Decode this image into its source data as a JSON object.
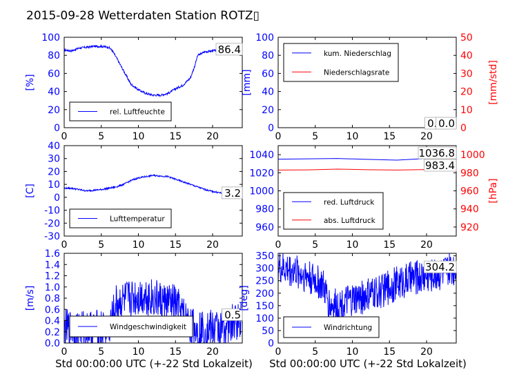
{
  "title": "2015-09-28 Wetterdaten Station ROTZ▯",
  "colors": {
    "primary": "#0000ff",
    "secondary": "#ff0000",
    "axis": "#000000",
    "background": "#ffffff"
  },
  "xlabel": "Std 00:00:00 UTC (+-22 Std Lokalzeit)",
  "chart_data": [
    {
      "id": "humidity",
      "type": "line",
      "xlim": [
        0,
        24
      ],
      "ylim": [
        0,
        100
      ],
      "xticks": [
        0,
        5,
        10,
        15,
        20
      ],
      "yticks": [
        0,
        20,
        40,
        60,
        80,
        100
      ],
      "ylabel": "[%]",
      "legend_placement": "lower-center",
      "last_value": "86.4",
      "series": [
        {
          "name": "rel. Luftfeuchte",
          "color": "#0000ff",
          "noise": 1.2,
          "x": [
            0,
            1,
            2,
            3,
            4,
            5,
            6,
            6.5,
            7,
            8,
            9,
            10,
            11,
            12,
            13,
            14,
            15,
            16,
            17,
            17.5,
            18,
            19,
            20,
            21,
            22,
            23,
            24
          ],
          "y": [
            86,
            85,
            88,
            89,
            90,
            90,
            89,
            85,
            78,
            63,
            48,
            42,
            38,
            36,
            36,
            38,
            43,
            47,
            55,
            66,
            80,
            84,
            85,
            86,
            86,
            86,
            86.4
          ]
        }
      ]
    },
    {
      "id": "precipitation",
      "type": "line",
      "xlim": [
        0,
        24
      ],
      "ylim": [
        0,
        100
      ],
      "y2lim": [
        0,
        50
      ],
      "xticks": [
        0,
        5,
        10,
        15,
        20
      ],
      "yticks": [
        0,
        20,
        40,
        60,
        80,
        100
      ],
      "y2ticks": [
        0,
        10,
        20,
        30,
        40,
        50
      ],
      "ylabel": "[mm]",
      "y2label": "[mm/std]",
      "legend_placement": "upper-left",
      "last_value": "0.0",
      "last_value_2": "0.0",
      "series": [
        {
          "name": "kum. Niederschlag",
          "color": "#0000ff",
          "axis": "left",
          "x": [
            0,
            24
          ],
          "y": [
            0,
            0
          ]
        },
        {
          "name": "Niederschlagsrate",
          "color": "#ff0000",
          "axis": "right",
          "x": [
            0,
            24
          ],
          "y": [
            0,
            0
          ]
        }
      ]
    },
    {
      "id": "temperature",
      "type": "line",
      "xlim": [
        0,
        24
      ],
      "ylim": [
        -30,
        40
      ],
      "xticks": [
        0,
        5,
        10,
        15,
        20
      ],
      "yticks": [
        -30,
        -20,
        -10,
        0,
        10,
        20,
        30,
        40
      ],
      "ylabel": "[C]",
      "legend_placement": "lower-center",
      "last_value": "3.2",
      "series": [
        {
          "name": "Lufttemperatur",
          "color": "#0000ff",
          "noise": 0.6,
          "x": [
            0,
            1,
            2,
            3,
            4,
            5,
            6,
            7,
            8,
            9,
            10,
            11,
            12,
            13,
            14,
            15,
            16,
            17,
            18,
            19,
            20,
            21,
            22,
            23,
            24
          ],
          "y": [
            7,
            7,
            6,
            5,
            5.5,
            6,
            7,
            8,
            10,
            13,
            15,
            16,
            17,
            16.5,
            16,
            14,
            12,
            10,
            8,
            6,
            4.5,
            3.5,
            3,
            3.2,
            3.2
          ]
        }
      ]
    },
    {
      "id": "pressure",
      "type": "line",
      "xlim": [
        0,
        24
      ],
      "ylim": [
        950,
        1050
      ],
      "y2lim": [
        910,
        1010
      ],
      "xticks": [
        0,
        5,
        10,
        15,
        20
      ],
      "yticks": [
        960,
        980,
        1000,
        1020,
        1040
      ],
      "y2ticks": [
        920,
        940,
        960,
        980,
        1000
      ],
      "ylabel": "",
      "y2label": "[hPa]",
      "legend_placement": "lower-left",
      "last_value": "1036.8",
      "last_value_2": "983.4",
      "series": [
        {
          "name": "red. Luftdruck",
          "color": "#0000ff",
          "axis": "left",
          "x": [
            0,
            4,
            8,
            12,
            16,
            20,
            24
          ],
          "y": [
            1035,
            1035.4,
            1035.8,
            1034.8,
            1034,
            1035.8,
            1036.8
          ]
        },
        {
          "name": "abs. Luftdruck",
          "color": "#ff0000",
          "axis": "right",
          "x": [
            0,
            4,
            8,
            12,
            16,
            20,
            24
          ],
          "y": [
            983,
            983.2,
            984,
            983.4,
            983,
            983.6,
            983.4
          ]
        }
      ]
    },
    {
      "id": "windspeed",
      "type": "line",
      "xlim": [
        0,
        24
      ],
      "ylim": [
        0,
        1.6
      ],
      "xticks": [
        0,
        5,
        10,
        15,
        20
      ],
      "yticks": [
        0.0,
        0.2,
        0.4,
        0.6,
        0.8,
        1.0,
        1.2,
        1.4,
        1.6
      ],
      "ylabel": "[m/s]",
      "legend_placement": "lower-center",
      "last_value": "0.5",
      "series": [
        {
          "name": "Windgeschwindigkeit",
          "color": "#0000ff",
          "noise": 0.35,
          "x": [
            0,
            3,
            6,
            6.5,
            7,
            9,
            11,
            13,
            15,
            16,
            17,
            18,
            20,
            22,
            23.5,
            24
          ],
          "y": [
            0.25,
            0.25,
            0.25,
            0.45,
            0.7,
            0.8,
            0.85,
            0.75,
            0.7,
            0.5,
            0.3,
            0.25,
            0.25,
            0.3,
            0.4,
            0.5
          ]
        }
      ]
    },
    {
      "id": "winddirection",
      "type": "line",
      "xlim": [
        0,
        24
      ],
      "ylim": [
        0,
        360
      ],
      "xticks": [
        0,
        5,
        10,
        15,
        20
      ],
      "yticks": [
        0,
        50,
        100,
        150,
        200,
        250,
        300,
        350
      ],
      "ylabel": "[deg]",
      "legend_placement": "lower-left",
      "last_value": "304.2",
      "series": [
        {
          "name": "Windrichtung",
          "color": "#0000ff",
          "noise": 70,
          "x": [
            0,
            2,
            4,
            6,
            7,
            8,
            10,
            12,
            14,
            16,
            18,
            20,
            22,
            24
          ],
          "y": [
            300,
            290,
            270,
            230,
            150,
            150,
            170,
            190,
            210,
            240,
            260,
            270,
            280,
            304
          ]
        }
      ]
    }
  ]
}
